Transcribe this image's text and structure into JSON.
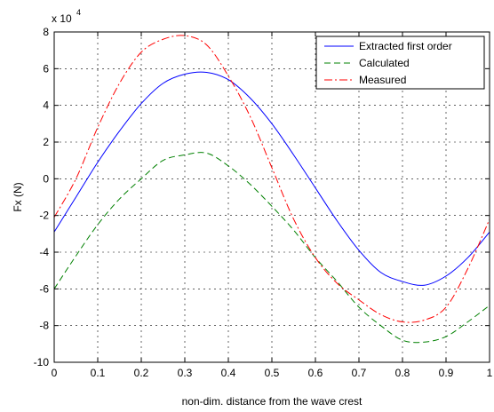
{
  "chart_data": {
    "type": "line",
    "xlabel": "non-dim. distance from the wave crest",
    "ylabel": "Fx (N)",
    "y_multiplier_base": "x 10",
    "y_multiplier_exp": "4",
    "xlim": [
      0,
      1
    ],
    "ylim": [
      -10,
      8
    ],
    "grid": true,
    "legend_placement": "top-right",
    "x_ticks": [
      "0",
      "0.1",
      "0.2",
      "0.3",
      "0.4",
      "0.5",
      "0.6",
      "0.7",
      "0.8",
      "0.9",
      "1"
    ],
    "y_ticks": [
      "-10",
      "-8",
      "-6",
      "-4",
      "-2",
      "0",
      "2",
      "4",
      "6",
      "8"
    ],
    "x": [
      0,
      0.05,
      0.1,
      0.15,
      0.2,
      0.25,
      0.3,
      0.35,
      0.4,
      0.45,
      0.5,
      0.55,
      0.6,
      0.65,
      0.7,
      0.75,
      0.8,
      0.85,
      0.9,
      0.95,
      1
    ],
    "series": [
      {
        "name": "Extracted first order",
        "color": "#0000ff",
        "style": "solid",
        "values": [
          -2.9,
          -1.0,
          0.9,
          2.6,
          4.1,
          5.2,
          5.7,
          5.8,
          5.4,
          4.4,
          3.0,
          1.3,
          -0.5,
          -2.3,
          -3.9,
          -5.1,
          -5.6,
          -5.8,
          -5.3,
          -4.3,
          -2.9
        ]
      },
      {
        "name": "Calculated",
        "color": "#008000",
        "style": "dashed",
        "values": [
          -6.0,
          -4.2,
          -2.5,
          -1.1,
          0.0,
          1.0,
          1.3,
          1.4,
          0.7,
          -0.3,
          -1.5,
          -2.8,
          -4.3,
          -5.6,
          -7.0,
          -8.0,
          -8.8,
          -8.9,
          -8.6,
          -7.8,
          -6.9
        ]
      },
      {
        "name": "Measured",
        "color": "#ff0000",
        "style": "dashdot",
        "values": [
          -2.1,
          0.0,
          2.8,
          5.2,
          6.9,
          7.6,
          7.8,
          7.3,
          5.6,
          3.4,
          0.6,
          -2.2,
          -4.3,
          -5.7,
          -6.6,
          -7.4,
          -7.8,
          -7.7,
          -7.0,
          -4.9,
          -2.2
        ]
      }
    ]
  }
}
